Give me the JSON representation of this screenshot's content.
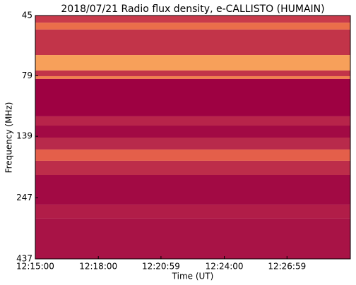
{
  "chart_data": {
    "type": "spectrogram",
    "title": "2018/07/21  Radio flux density, e-CALLISTO (HUMAIN)",
    "x_label": "Time (UT)",
    "y_label": "Frequency (MHz)",
    "xlim": [
      "12:15:00",
      "12:30:00"
    ],
    "xticks": [
      "12:15:00",
      "12:18:00",
      "12:20:59",
      "12:24:00",
      "12:26:59"
    ],
    "ylim": [
      45,
      437
    ],
    "log_y": true,
    "y_inverted": true,
    "yticks": [
      45,
      79,
      139,
      247,
      437
    ],
    "bands": [
      {
        "from": 45,
        "to": 48.1,
        "color": "#c83a4b"
      },
      {
        "from": 48.1,
        "to": 51.3,
        "color": "#ea6e4a"
      },
      {
        "from": 51.3,
        "to": 65.1,
        "color": "#c23449"
      },
      {
        "from": 65.1,
        "to": 75.2,
        "color": "#f7a05a"
      },
      {
        "from": 75.2,
        "to": 79.3,
        "color": "#c23449"
      },
      {
        "from": 79.3,
        "to": 81.4,
        "color": "#f08050"
      },
      {
        "from": 81.4,
        "to": 115.4,
        "color": "#9e0142"
      },
      {
        "from": 115.4,
        "to": 125.8,
        "color": "#b7244a"
      },
      {
        "from": 125.8,
        "to": 140.7,
        "color": "#a20a44"
      },
      {
        "from": 140.7,
        "to": 157.3,
        "color": "#b82a4b"
      },
      {
        "from": 157.3,
        "to": 174.8,
        "color": "#e45f4a"
      },
      {
        "from": 174.8,
        "to": 199.5,
        "color": "#bd2d4a"
      },
      {
        "from": 199.5,
        "to": 263,
        "color": "#a20a44"
      },
      {
        "from": 263,
        "to": 300,
        "color": "#b11d48"
      },
      {
        "from": 300,
        "to": 437,
        "color": "#a81346"
      }
    ]
  }
}
